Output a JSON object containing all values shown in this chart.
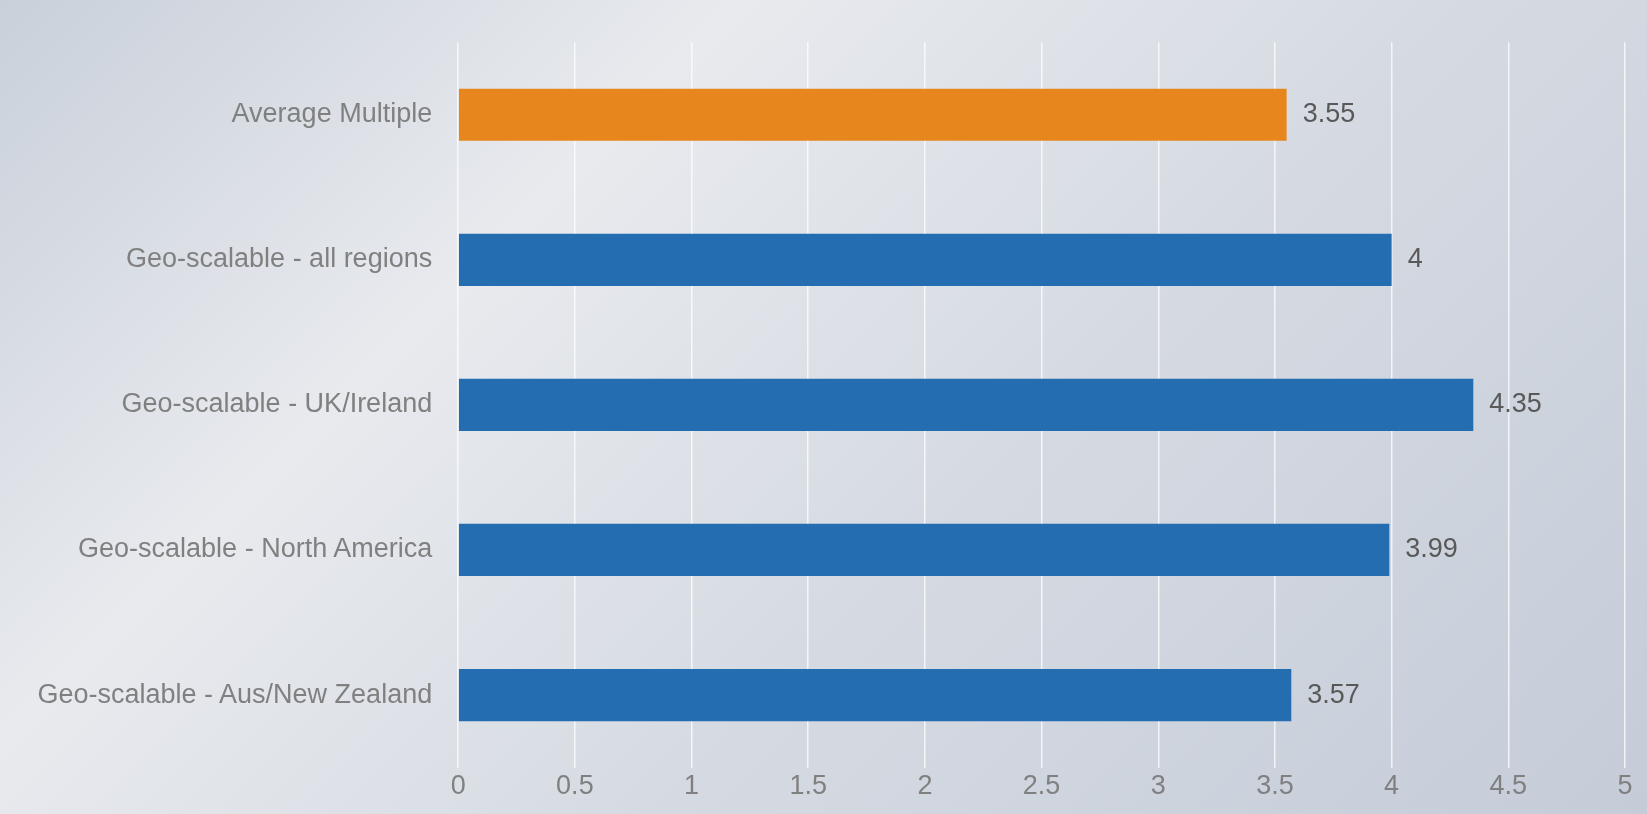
{
  "chart_data": {
    "type": "bar",
    "orientation": "horizontal",
    "categories": [
      "Average Multiple",
      "Geo-scalable - all regions",
      "Geo-scalable - UK/Ireland",
      "Geo-scalable - North America",
      "Geo-scalable - Aus/New Zealand"
    ],
    "values": [
      3.55,
      4,
      4.35,
      3.99,
      3.57
    ],
    "colors": [
      "#e8861e",
      "#256db1",
      "#256db1",
      "#256db1",
      "#256db1"
    ],
    "xlim": [
      0,
      5
    ],
    "xticks": [
      0,
      0.5,
      1,
      1.5,
      2,
      2.5,
      3,
      3.5,
      4,
      4.5,
      5
    ],
    "grid": "x",
    "legend": false,
    "data_labels": true
  }
}
